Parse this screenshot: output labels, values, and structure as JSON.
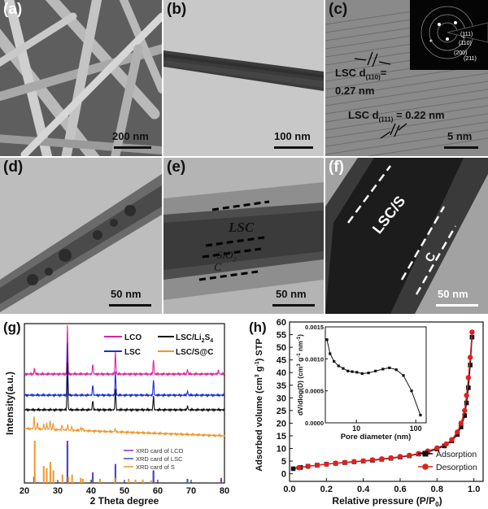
{
  "panels": {
    "a": {
      "label": "(a)",
      "scale": "200 nm"
    },
    "b": {
      "label": "(b)",
      "scale": "100 nm"
    },
    "c": {
      "label": "(c)",
      "scale": "5 nm",
      "ann1_line1": "LSC d",
      "ann1_sub": "(110)",
      "ann1_line2": "0.27 nm",
      "ann1_eq": "=",
      "ann2_line1": "LSC d",
      "ann2_sub": "(111)",
      "ann2_eq": "= 0.22 nm",
      "saed": [
        "(111)",
        "(110)",
        "(200)",
        "(211)"
      ]
    },
    "d": {
      "label": "(d)",
      "scale": "50 nm"
    },
    "e": {
      "label": "(e)",
      "scale": "50 nm",
      "lsc": "LSC",
      "sio2": "SiO",
      "sio2_sub": "2",
      "c": "C"
    },
    "f": {
      "label": "(f)",
      "scale": "50 nm",
      "lscs": "LSC/S",
      "c": "C"
    }
  },
  "chart_data": [
    {
      "type": "line",
      "panel_label": "(g)",
      "xlabel": "2 Theta degree",
      "ylabel": "Intensity(a.u.)",
      "xlim": [
        20,
        80
      ],
      "xticks": [
        20,
        30,
        40,
        50,
        60,
        70,
        80
      ],
      "legend": [
        "LCO",
        "LSC",
        "LSC/Li2S4",
        "LSC/S@C"
      ],
      "legend_display": {
        "lco": "LCO",
        "lsc": "LSC",
        "li2s4": "LSC/Li",
        "li2s4_sub1": "2",
        "li2s4_mid": "S",
        "li2s4_sub2": "4",
        "lscsc": "LSC/S@C"
      },
      "series": [
        {
          "name": "LCO",
          "color": "#e0249a",
          "peaks": [
            [
              23,
              0.12
            ],
            [
              32.9,
              1.0
            ],
            [
              40.5,
              0.2
            ],
            [
              47.3,
              0.45
            ],
            [
              58.7,
              0.3
            ],
            [
              68.9,
              0.1
            ],
            [
              78.2,
              0.08
            ]
          ]
        },
        {
          "name": "LSC",
          "color": "#1c2fd6",
          "peaks": [
            [
              32.9,
              1.0
            ],
            [
              40.5,
              0.2
            ],
            [
              47.3,
              0.45
            ],
            [
              58.7,
              0.3
            ],
            [
              68.9,
              0.08
            ]
          ]
        },
        {
          "name": "LSC/Li2S4",
          "color": "#111111",
          "peaks": [
            [
              32.9,
              1.0
            ],
            [
              40.5,
              0.2
            ],
            [
              47.3,
              0.45
            ],
            [
              58.7,
              0.3
            ],
            [
              68.9,
              0.08
            ]
          ]
        },
        {
          "name": "LSC/S@C",
          "color": "#f0962b",
          "peaks": [
            [
              22.9,
              0.6
            ],
            [
              23.9,
              0.3
            ],
            [
              25.8,
              0.25
            ],
            [
              26.7,
              0.3
            ],
            [
              27.7,
              0.45
            ],
            [
              28.6,
              0.3
            ],
            [
              31.3,
              0.25
            ],
            [
              33,
              0.25
            ],
            [
              34.2,
              0.2
            ],
            [
              36.9,
              0.15
            ],
            [
              37.5,
              0.12
            ],
            [
              47.2,
              0.15
            ]
          ]
        }
      ],
      "reference_cards": [
        {
          "name": "XRD card of LCO",
          "color": "#8a2bbf",
          "lines": [
            [
              22.9,
              0.15
            ],
            [
              32.9,
              1.0
            ],
            [
              40.5,
              0.25
            ],
            [
              47.3,
              0.45
            ],
            [
              58.7,
              0.3
            ],
            [
              68.9,
              0.1
            ],
            [
              79,
              0.12
            ]
          ]
        },
        {
          "name": "XRD card of LSC",
          "color": "#3a4ccc",
          "lines": [
            [
              32.9,
              0.9
            ],
            [
              40.5,
              0.18
            ],
            [
              47.3,
              0.4
            ],
            [
              58.7,
              0.28
            ],
            [
              68.9,
              0.08
            ]
          ]
        },
        {
          "name": "XRD card of S",
          "color": "#f0962b",
          "lines": [
            [
              23.1,
              1.0
            ],
            [
              25.8,
              0.4
            ],
            [
              26.7,
              0.35
            ],
            [
              27.8,
              0.5
            ],
            [
              28.7,
              0.3
            ],
            [
              31.4,
              0.2
            ],
            [
              33.2,
              0.15
            ],
            [
              34.3,
              0.2
            ],
            [
              36.9,
              0.12
            ],
            [
              37.5,
              0.1
            ],
            [
              40.1,
              0.08
            ],
            [
              42.7,
              0.1
            ],
            [
              47.2,
              0.12
            ],
            [
              51.3,
              0.1
            ],
            [
              53.3,
              0.08
            ],
            [
              55.5,
              0.08
            ],
            [
              58.0,
              0.06
            ]
          ]
        }
      ]
    },
    {
      "type": "scatter",
      "panel_label": "(h)",
      "xlabel": "Relative pressure (P/P0)",
      "ylabel": "Adsorbed volume (cm3 g-1) STP",
      "xlim": [
        0,
        1.05
      ],
      "ylim": [
        -3,
        60
      ],
      "xticks": [
        0.0,
        0.2,
        0.4,
        0.6,
        0.8,
        1.0
      ],
      "yticks": [
        0,
        5,
        10,
        15,
        20,
        25,
        30,
        35,
        40,
        45,
        50,
        55,
        60
      ],
      "xlabel_display": {
        "text": "Relative pressure (P/P",
        "sub": "0",
        "close": ")"
      },
      "ylabel_display": {
        "a": "Adsorbed volume (cm",
        "sup1": "3",
        "b": " g",
        "sup2": "-1",
        "c": ") STP"
      },
      "series": [
        {
          "name": "Adsorption",
          "color": "#111111",
          "marker": "square",
          "x": [
            0.02,
            0.06,
            0.1,
            0.15,
            0.2,
            0.25,
            0.3,
            0.35,
            0.4,
            0.45,
            0.5,
            0.55,
            0.6,
            0.65,
            0.7,
            0.75,
            0.8,
            0.84,
            0.88,
            0.91,
            0.93,
            0.95,
            0.96,
            0.97,
            0.98,
            0.99
          ],
          "y": [
            2.0,
            2.5,
            3.0,
            3.4,
            3.8,
            4.1,
            4.4,
            4.7,
            5.0,
            5.3,
            5.7,
            6.1,
            6.6,
            7.1,
            7.8,
            8.6,
            9.8,
            11.0,
            13.0,
            15.5,
            18.5,
            23.0,
            28.0,
            34.0,
            43.0,
            54.0
          ]
        },
        {
          "name": "Desorption",
          "color": "#e02020",
          "marker": "circle",
          "x": [
            0.99,
            0.98,
            0.97,
            0.96,
            0.95,
            0.93,
            0.91,
            0.88,
            0.85,
            0.8,
            0.75,
            0.7,
            0.65,
            0.6,
            0.55,
            0.5,
            0.45,
            0.4,
            0.35,
            0.3,
            0.25,
            0.2,
            0.15,
            0.1,
            0.05
          ],
          "y": [
            56.0,
            46.0,
            38.0,
            31.0,
            25.0,
            20.0,
            16.5,
            13.5,
            11.8,
            10.2,
            9.0,
            8.0,
            7.3,
            6.8,
            6.3,
            5.9,
            5.5,
            5.1,
            4.8,
            4.5,
            4.2,
            3.8,
            3.4,
            2.9,
            2.4
          ]
        }
      ],
      "inset": {
        "type": "line",
        "xlabel": "Pore diameter (nm)",
        "ylabel": "dV/dlog(D) (cm3 g-1 nm-1)",
        "ylabel_display": {
          "a": "dV/dlog(D) (cm",
          "sup1": "3",
          "b": " g",
          "sup2": "-1",
          "c": " nm",
          "sup3": "-1",
          "d": ")"
        },
        "xscale": "log",
        "xlim": [
          3,
          150
        ],
        "ylim": [
          0,
          0.0015
        ],
        "xticks": [
          10,
          100
        ],
        "yticks": [
          0.0,
          0.0005,
          0.001,
          0.0015
        ],
        "ytick_labels": [
          "0.0000",
          "0.0005",
          "0.0010",
          "0.0015"
        ],
        "series": [
          {
            "name": "",
            "color": "#111111",
            "x": [
              3.2,
              3.6,
              4.2,
              5.0,
              6.0,
              7.2,
              8.5,
              10.2,
              12.5,
              16,
              21,
              28,
              36,
              47,
              62,
              85,
              120
            ],
            "y": [
              0.0013,
              0.00108,
              0.00096,
              0.00089,
              0.00085,
              0.00081,
              0.0008,
              0.00079,
              0.00077,
              0.00078,
              0.00081,
              0.00084,
              0.00086,
              0.00083,
              0.00074,
              0.0005,
              0.00012
            ]
          }
        ]
      }
    }
  ]
}
